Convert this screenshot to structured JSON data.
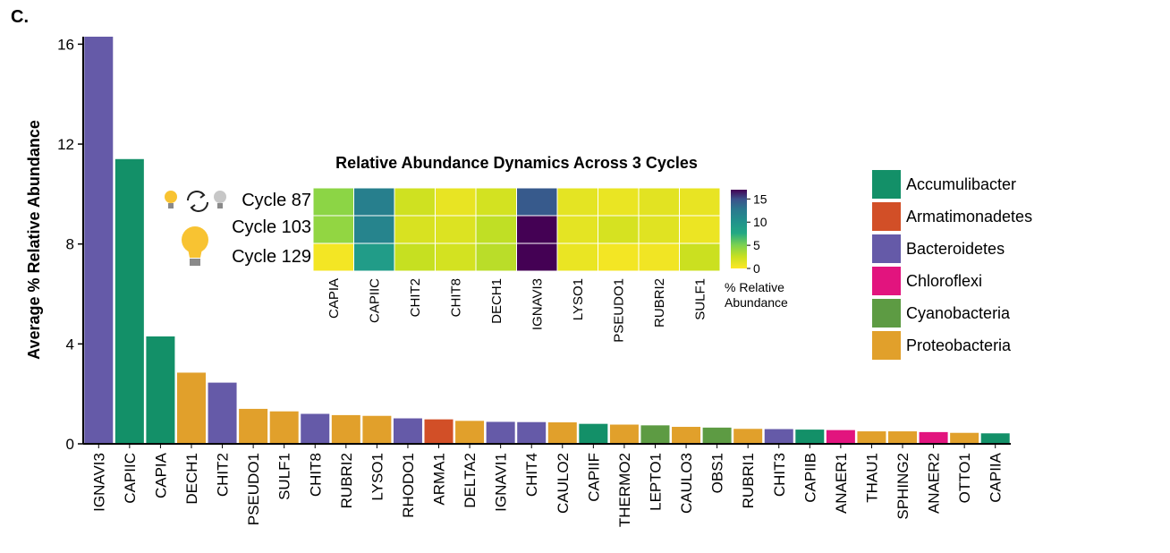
{
  "panel_label": "C.",
  "chart_data": [
    {
      "type": "bar",
      "ylabel": "Average % Relative Abundance",
      "ylim": [
        0,
        16.3
      ],
      "yticks": [
        0,
        4,
        8,
        12,
        16
      ],
      "categories": [
        "IGNAVI3",
        "CAPIIC",
        "CAPIA",
        "DECH1",
        "CHIT2",
        "PSEUDO1",
        "SULF1",
        "CHIT8",
        "RUBRI2",
        "LYSO1",
        "RHODO1",
        "ARMA1",
        "DELTA2",
        "IGNAVI1",
        "CHIT4",
        "CAULO2",
        "CAPIIF",
        "THERMO2",
        "LEPTO1",
        "CAULO3",
        "OBS1",
        "RUBRI1",
        "CHIT3",
        "CAPIIB",
        "ANAER1",
        "THAU1",
        "SPHING2",
        "ANAER2",
        "OTTO1",
        "CAPIIA"
      ],
      "values": [
        17.0,
        11.4,
        4.3,
        2.85,
        2.45,
        1.4,
        1.3,
        1.2,
        1.15,
        1.12,
        1.02,
        0.98,
        0.92,
        0.88,
        0.87,
        0.86,
        0.8,
        0.77,
        0.74,
        0.68,
        0.65,
        0.6,
        0.59,
        0.57,
        0.55,
        0.5,
        0.5,
        0.47,
        0.44,
        0.42
      ],
      "phylum": [
        "Bacteroidetes",
        "Accumulibacter",
        "Accumulibacter",
        "Proteobacteria",
        "Bacteroidetes",
        "Proteobacteria",
        "Proteobacteria",
        "Bacteroidetes",
        "Proteobacteria",
        "Proteobacteria",
        "Bacteroidetes",
        "Armatimonadetes",
        "Proteobacteria",
        "Bacteroidetes",
        "Bacteroidetes",
        "Proteobacteria",
        "Accumulibacter",
        "Proteobacteria",
        "Cyanobacteria",
        "Proteobacteria",
        "Cyanobacteria",
        "Proteobacteria",
        "Bacteroidetes",
        "Accumulibacter",
        "Chloroflexi",
        "Proteobacteria",
        "Proteobacteria",
        "Chloroflexi",
        "Proteobacteria",
        "Accumulibacter"
      ],
      "legend": [
        {
          "name": "Accumulibacter",
          "color": "#139068"
        },
        {
          "name": "Armatimonadetes",
          "color": "#d24f27"
        },
        {
          "name": "Bacteroidetes",
          "color": "#655aa8"
        },
        {
          "name": "Chloroflexi",
          "color": "#e2147e"
        },
        {
          "name": "Cyanobacteria",
          "color": "#5d9b43"
        },
        {
          "name": "Proteobacteria",
          "color": "#e1a02b"
        }
      ],
      "legend_position": "right"
    },
    {
      "type": "heatmap",
      "title": "Relative Abundance Dynamics Across 3 Cycles",
      "rows": [
        "Cycle 87",
        "Cycle 103",
        "Cycle 129"
      ],
      "columns": [
        "CAPIA",
        "CAPIIC",
        "CHIT2",
        "CHIT8",
        "DECH1",
        "IGNAVI3",
        "LYSO1",
        "PSEUDO1",
        "RUBRI2",
        "SULF1"
      ],
      "values": [
        [
          4.5,
          12.0,
          2.2,
          1.0,
          2.0,
          14.5,
          1.2,
          0.9,
          1.3,
          1.0
        ],
        [
          4.3,
          11.5,
          1.8,
          1.6,
          2.8,
          17.0,
          1.2,
          1.9,
          1.4,
          0.8
        ],
        [
          0.5,
          9.0,
          2.6,
          2.0,
          3.0,
          18.0,
          0.9,
          0.5,
          0.6,
          2.4
        ]
      ],
      "colorbar": {
        "label": "% Relative Abundance",
        "ticks": [
          0,
          5,
          10,
          15
        ],
        "range": [
          0,
          17
        ]
      }
    }
  ]
}
